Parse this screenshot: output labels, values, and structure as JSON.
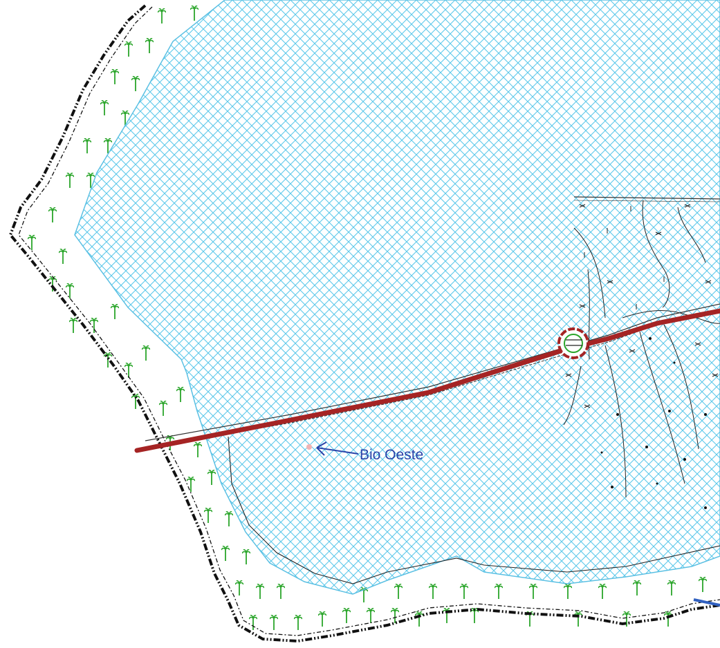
{
  "map": {
    "annotation": {
      "text": "Bio Oeste",
      "color": "#2a43a8"
    },
    "colors": {
      "lake_hatch": "#5cc8ea",
      "lake_border": "#5bc0e3",
      "vegetation": "#2aa52a",
      "boundary": "#111111",
      "road": "#a52424",
      "contour": "#222222",
      "sample_point": "#f2b3b3"
    },
    "icons": [
      "palm-tree-icon",
      "marsh-symbol-icon",
      "arrow-left-icon",
      "roundabout-icon"
    ]
  }
}
